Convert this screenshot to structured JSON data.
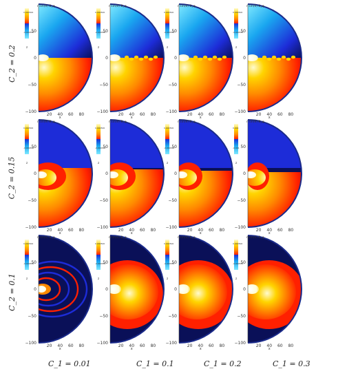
{
  "figure": {
    "row_labels": [
      "C_2 = 0.2",
      "C_2 = 0.15",
      "C_2 = 0.1"
    ],
    "col_labels": [
      "C_1 = 0.01",
      "C_1 = 0.1",
      "C_1 = 0.2",
      "C_1 = 0.3"
    ],
    "colorbar_title": "r sin(θ) B_φ",
    "y_axis_label": "z",
    "x_axis_label": "x",
    "y_ticks": [
      "50",
      "0",
      "−50",
      "−100"
    ],
    "x_ticks": [
      "20",
      "40",
      "60",
      "80"
    ],
    "colormap": [
      "#0a1058",
      "#1d2cd8",
      "#1aa7f0",
      "#7fe9ff",
      "#ff2000",
      "#ff8a00",
      "#ffd400",
      "#fffbcf"
    ],
    "panels": [
      {
        "row": 0,
        "col": 0,
        "pattern": "split",
        "cb_top": "0.000500",
        "cb_bottom": "-0.000500"
      },
      {
        "row": 0,
        "col": 1,
        "pattern": "split",
        "cb_top": "0.000500",
        "cb_bottom": "-0.000500"
      },
      {
        "row": 0,
        "col": 2,
        "pattern": "split",
        "cb_top": "0.000500",
        "cb_bottom": "-0.000500"
      },
      {
        "row": 0,
        "col": 3,
        "pattern": "split",
        "cb_top": "0.000500",
        "cb_bottom": "-0.000500"
      },
      {
        "row": 1,
        "col": 0,
        "pattern": "mixed",
        "cb_top": "0.000500",
        "cb_bottom": "-0.000500"
      },
      {
        "row": 1,
        "col": 1,
        "pattern": "mixed",
        "cb_top": "0.000500",
        "cb_bottom": "-0.000500"
      },
      {
        "row": 1,
        "col": 2,
        "pattern": "mixed",
        "cb_top": "0.000500",
        "cb_bottom": "-0.000500"
      },
      {
        "row": 1,
        "col": 3,
        "pattern": "mixed",
        "cb_top": "0.001",
        "cb_bottom": "-0.001"
      },
      {
        "row": 2,
        "col": 0,
        "pattern": "rings",
        "cb_top": "0.000500",
        "cb_bottom": "-0.000500"
      },
      {
        "row": 2,
        "col": 1,
        "pattern": "blob",
        "cb_top": "0.000500",
        "cb_bottom": "-0.000500"
      },
      {
        "row": 2,
        "col": 2,
        "pattern": "blob",
        "cb_top": "0.000500",
        "cb_bottom": "-0.000500"
      },
      {
        "row": 2,
        "col": 3,
        "pattern": "blob",
        "cb_top": "0.000500",
        "cb_bottom": "-0.000500"
      }
    ]
  }
}
